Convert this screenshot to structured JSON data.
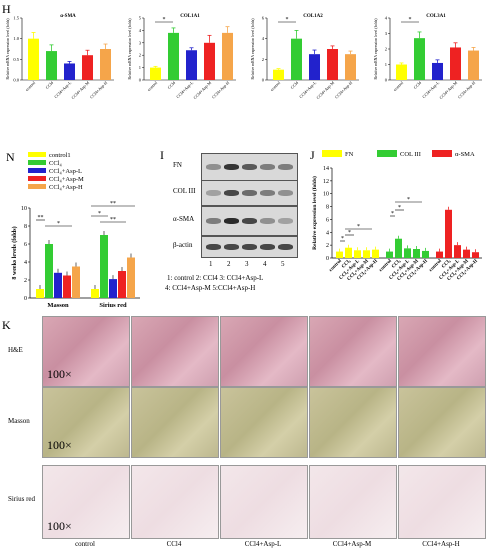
{
  "panel_H": {
    "letter": "H",
    "ylabel": "Relative mRNA expression level (folds)",
    "categories": [
      "control",
      "CCl4",
      "CCl4+Asp-L",
      "CCl4+Asp-M",
      "CCl4+Asp-H"
    ],
    "colors": [
      "#ffff00",
      "#33cc33",
      "#2222cc",
      "#ee2222",
      "#f5a54a"
    ],
    "charts": [
      {
        "title": "α-SMA",
        "values": [
          1.0,
          0.7,
          0.4,
          0.6,
          0.75
        ],
        "errors": [
          0.15,
          0.15,
          0.05,
          0.12,
          0.12
        ],
        "ymax": 1.5,
        "ticks": [
          "0.0",
          "0.5",
          "1.0",
          "1.5"
        ]
      },
      {
        "title": "COL1A1",
        "values": [
          1.0,
          3.8,
          2.4,
          3.0,
          3.8
        ],
        "errors": [
          0.1,
          0.4,
          0.2,
          0.6,
          0.5
        ],
        "ymax": 5,
        "ticks": [
          "0",
          "1",
          "2",
          "3",
          "4",
          "5"
        ],
        "sig": "*"
      },
      {
        "title": "COL1A2",
        "values": [
          1.0,
          4.0,
          2.5,
          3.0,
          2.5
        ],
        "errors": [
          0.1,
          0.8,
          0.4,
          0.3,
          0.3
        ],
        "ymax": 6,
        "ticks": [
          "0",
          "2",
          "4",
          "6"
        ],
        "sig": "*"
      },
      {
        "title": "COL3A1",
        "values": [
          1.0,
          2.7,
          1.1,
          2.1,
          1.9
        ],
        "errors": [
          0.1,
          0.4,
          0.2,
          0.3,
          0.2
        ],
        "ymax": 4,
        "ticks": [
          "0",
          "1",
          "2",
          "3",
          "4"
        ],
        "sig": "*"
      }
    ]
  },
  "chart_data": [
    {
      "type": "bar",
      "title": "α-SMA",
      "categories": [
        "control",
        "CCl4",
        "CCl4+Asp-L",
        "CCl4+Asp-M",
        "CCl4+Asp-H"
      ],
      "values": [
        1.0,
        0.7,
        0.4,
        0.6,
        0.75
      ],
      "ylim": [
        0,
        1.5
      ]
    },
    {
      "type": "bar",
      "title": "COL1A1",
      "categories": [
        "control",
        "CCl4",
        "CCl4+Asp-L",
        "CCl4+Asp-M",
        "CCl4+Asp-H"
      ],
      "values": [
        1.0,
        3.8,
        2.4,
        3.0,
        3.8
      ],
      "ylim": [
        0,
        5
      ]
    },
    {
      "type": "bar",
      "title": "COL1A2",
      "categories": [
        "control",
        "CCl4",
        "CCl4+Asp-L",
        "CCl4+Asp-M",
        "CCl4+Asp-H"
      ],
      "values": [
        1.0,
        4.0,
        2.5,
        3.0,
        2.5
      ],
      "ylim": [
        0,
        6
      ]
    },
    {
      "type": "bar",
      "title": "COL3A1",
      "categories": [
        "control",
        "CCl4",
        "CCl4+Asp-L",
        "CCl4+Asp-M",
        "CCl4+Asp-H"
      ],
      "values": [
        1.0,
        2.7,
        1.1,
        2.1,
        1.9
      ],
      "ylim": [
        0,
        4
      ]
    },
    {
      "type": "bar",
      "ylabel": "8 weeks levels (folds)",
      "categories": [
        "Masson",
        "Sirius red"
      ],
      "series": [
        {
          "name": "control1",
          "values": [
            1,
            1
          ]
        },
        {
          "name": "CCl4",
          "values": [
            6.0,
            7.0
          ]
        },
        {
          "name": "CCl4+Asp-L",
          "values": [
            2.8,
            2.1
          ]
        },
        {
          "name": "CCl4+Asp-M",
          "values": [
            2.5,
            3.0
          ]
        },
        {
          "name": "CCl4+Asp-H",
          "values": [
            3.5,
            4.5
          ]
        }
      ],
      "ylim": [
        0,
        10
      ]
    },
    {
      "type": "bar",
      "ylabel": "Relative expression level (folds)",
      "categories": [
        "FN",
        "COL III",
        "α-SMA"
      ],
      "series": [
        {
          "name": "control",
          "values": [
            1,
            1,
            1
          ]
        },
        {
          "name": "CCl4",
          "values": [
            1.6,
            3.0,
            7.5
          ]
        },
        {
          "name": "CCl4+Asp-L",
          "values": [
            1.2,
            1.5,
            2.0
          ]
        },
        {
          "name": "CCl4+Asp-M",
          "values": [
            1.2,
            1.4,
            1.3
          ]
        },
        {
          "name": "CCl4+Asp-H",
          "values": [
            1.3,
            1.1,
            0.9
          ]
        }
      ],
      "ylim": [
        0,
        14
      ]
    }
  ],
  "panel_N": {
    "letter": "N",
    "ylabel": "8 weeks levels (folds)",
    "groups": [
      "Masson",
      "Sirius red"
    ],
    "legend": [
      "control1",
      "CCl4",
      "CCl4+Asp-L",
      "CCl4+Asp-M",
      "CCl4+Asp-H"
    ],
    "colors": [
      "#ffff00",
      "#33cc33",
      "#2222cc",
      "#ee2222",
      "#f5a54a"
    ],
    "ticks": [
      "0",
      "2",
      "4",
      "6",
      "8",
      "10"
    ],
    "ymax": 10,
    "values": [
      [
        1,
        6.0,
        2.8,
        2.5,
        3.5
      ],
      [
        1,
        7.0,
        2.1,
        3.0,
        4.5
      ]
    ],
    "sig": [
      "**",
      "*",
      "**",
      "*",
      "**"
    ]
  },
  "panel_I": {
    "letter": "I",
    "rows": [
      "FN",
      "COL III",
      "α-SMA",
      "β-actin"
    ],
    "lanes": [
      "1",
      "2",
      "3",
      "4",
      "5"
    ],
    "caption1": "1: control  2: CCl4  3: CCl4+Asp-L",
    "caption2": "4: CCl4+Asp-M  5:CCl4+Asp-H"
  },
  "panel_J": {
    "letter": "J",
    "ylabel": "Relative expression level (folds)",
    "legend": [
      "FN",
      "COL III",
      "α-SMA"
    ],
    "legend_colors": [
      "#ffff00",
      "#33cc33",
      "#ee2222"
    ],
    "ticks": [
      "0",
      "2",
      "4",
      "6",
      "8",
      "10",
      "12",
      "14"
    ],
    "ymax": 14,
    "xlabels": [
      "control",
      "CCl4",
      "CCl4+Asp-L",
      "CCl4+Asp-M",
      "CCl4+Asp-H"
    ],
    "values": [
      [
        1,
        1.6,
        1.2,
        1.2,
        1.3
      ],
      [
        1,
        3.0,
        1.5,
        1.4,
        1.1
      ],
      [
        1,
        7.5,
        2.0,
        1.3,
        0.9
      ]
    ],
    "sig": [
      "*",
      "*",
      "*",
      "*",
      "*",
      "*"
    ]
  },
  "panel_K": {
    "letter": "K",
    "rows": [
      "H&E",
      "Masson",
      "Sirius red"
    ],
    "columns": [
      "control",
      "CCl4",
      "CCl4+Asp-L",
      "CCl4+Asp-M",
      "CCl4+Asp-H"
    ],
    "magnification": "100×"
  }
}
